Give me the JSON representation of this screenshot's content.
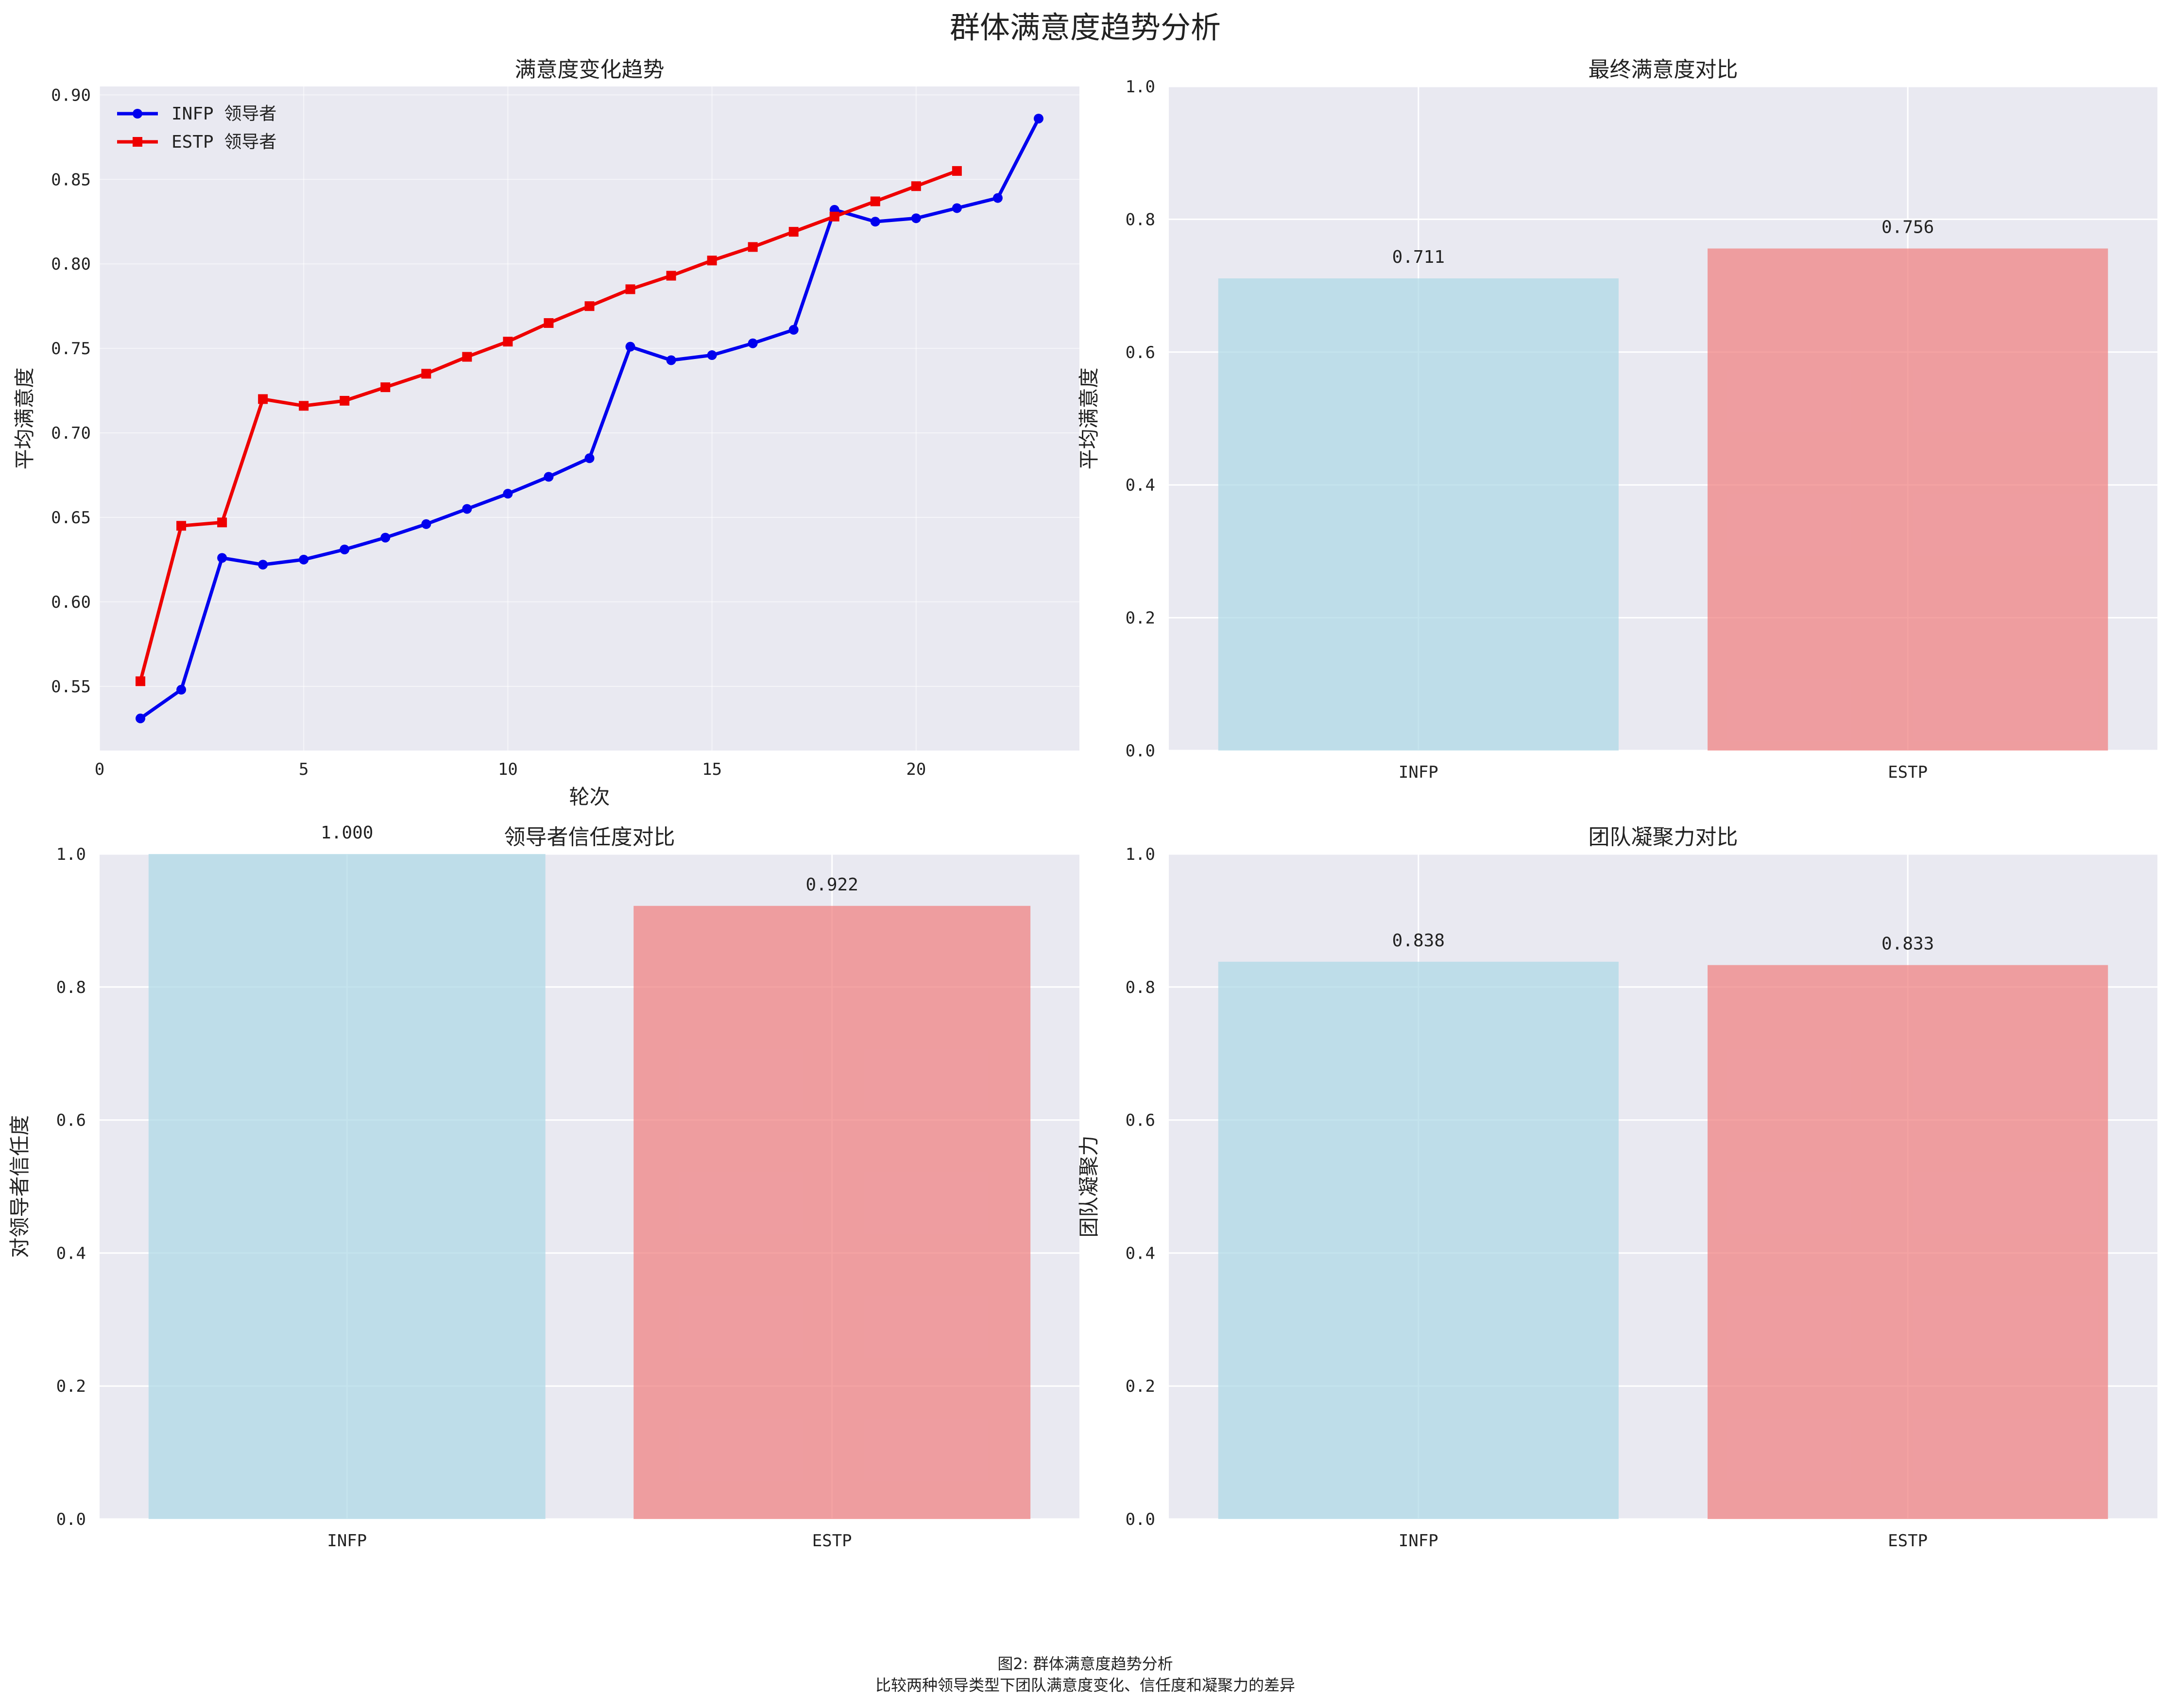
{
  "figure": {
    "title": "群体满意度趋势分析",
    "caption_line1": "图2: 群体满意度趋势分析",
    "caption_line2": "比较两种领导类型下团队满意度变化、信任度和凝聚力的差异"
  },
  "colors": {
    "axes_bg": "#e9e9f1",
    "grid": "#ffffff",
    "infp_line": "#0000ee",
    "estp_line": "#ee0000",
    "infp_bar": "#add8e6",
    "estp_bar": "#f08080"
  },
  "chart_data": [
    {
      "type": "line",
      "title": "满意度变化趋势",
      "xlabel": "轮次",
      "ylabel": "平均满意度",
      "xlim": [
        0,
        24
      ],
      "ylim": [
        0.512,
        0.905
      ],
      "xticks": [
        0,
        5,
        10,
        15,
        20
      ],
      "yticks": [
        0.55,
        0.6,
        0.65,
        0.7,
        0.75,
        0.8,
        0.85,
        0.9
      ],
      "ytick_labels": [
        "0.55",
        "0.60",
        "0.65",
        "0.70",
        "0.75",
        "0.80",
        "0.85",
        "0.90"
      ],
      "legend": "top-left",
      "grid": true,
      "series": [
        {
          "name": "INFP 领导者",
          "marker": "circle",
          "x": [
            1,
            2,
            3,
            4,
            5,
            6,
            7,
            8,
            9,
            10,
            11,
            12,
            13,
            14,
            15,
            16,
            17,
            18,
            19,
            20,
            21,
            22,
            23
          ],
          "y": [
            0.531,
            0.548,
            0.626,
            0.622,
            0.625,
            0.631,
            0.638,
            0.646,
            0.655,
            0.664,
            0.674,
            0.685,
            0.751,
            0.743,
            0.746,
            0.753,
            0.761,
            0.832,
            0.825,
            0.827,
            0.833,
            0.839,
            0.886
          ]
        },
        {
          "name": "ESTP 领导者",
          "marker": "square",
          "x": [
            1,
            2,
            3,
            4,
            5,
            6,
            7,
            8,
            9,
            10,
            11,
            12,
            13,
            14,
            15,
            16,
            17,
            18,
            19,
            20,
            21
          ],
          "y": [
            0.553,
            0.645,
            0.647,
            0.72,
            0.716,
            0.719,
            0.727,
            0.735,
            0.745,
            0.754,
            0.765,
            0.775,
            0.785,
            0.793,
            0.802,
            0.81,
            0.819,
            0.828,
            0.837,
            0.846,
            0.855
          ]
        }
      ]
    },
    {
      "type": "bar",
      "title": "最终满意度对比",
      "xlabel": "",
      "ylabel": "平均满意度",
      "categories": [
        "INFP",
        "ESTP"
      ],
      "values": [
        0.711,
        0.756
      ],
      "value_labels": [
        "0.711",
        "0.756"
      ],
      "ylim": [
        0,
        1.0
      ],
      "yticks": [
        0.0,
        0.2,
        0.4,
        0.6,
        0.8,
        1.0
      ],
      "ytick_labels": [
        "0.0",
        "0.2",
        "0.4",
        "0.6",
        "0.8",
        "1.0"
      ],
      "grid": true
    },
    {
      "type": "bar",
      "title": "领导者信任度对比",
      "xlabel": "",
      "ylabel": "对领导者信任度",
      "categories": [
        "INFP",
        "ESTP"
      ],
      "values": [
        1.0,
        0.922
      ],
      "value_labels": [
        "1.000",
        "0.922"
      ],
      "ylim": [
        0,
        1.0
      ],
      "yticks": [
        0.0,
        0.2,
        0.4,
        0.6,
        0.8,
        1.0
      ],
      "ytick_labels": [
        "0.0",
        "0.2",
        "0.4",
        "0.6",
        "0.8",
        "1.0"
      ],
      "grid": true
    },
    {
      "type": "bar",
      "title": "团队凝聚力对比",
      "xlabel": "",
      "ylabel": "团队凝聚力",
      "categories": [
        "INFP",
        "ESTP"
      ],
      "values": [
        0.838,
        0.833
      ],
      "value_labels": [
        "0.838",
        "0.833"
      ],
      "ylim": [
        0,
        1.0
      ],
      "yticks": [
        0.0,
        0.2,
        0.4,
        0.6,
        0.8,
        1.0
      ],
      "ytick_labels": [
        "0.0",
        "0.2",
        "0.4",
        "0.6",
        "0.8",
        "1.0"
      ],
      "grid": true
    }
  ]
}
